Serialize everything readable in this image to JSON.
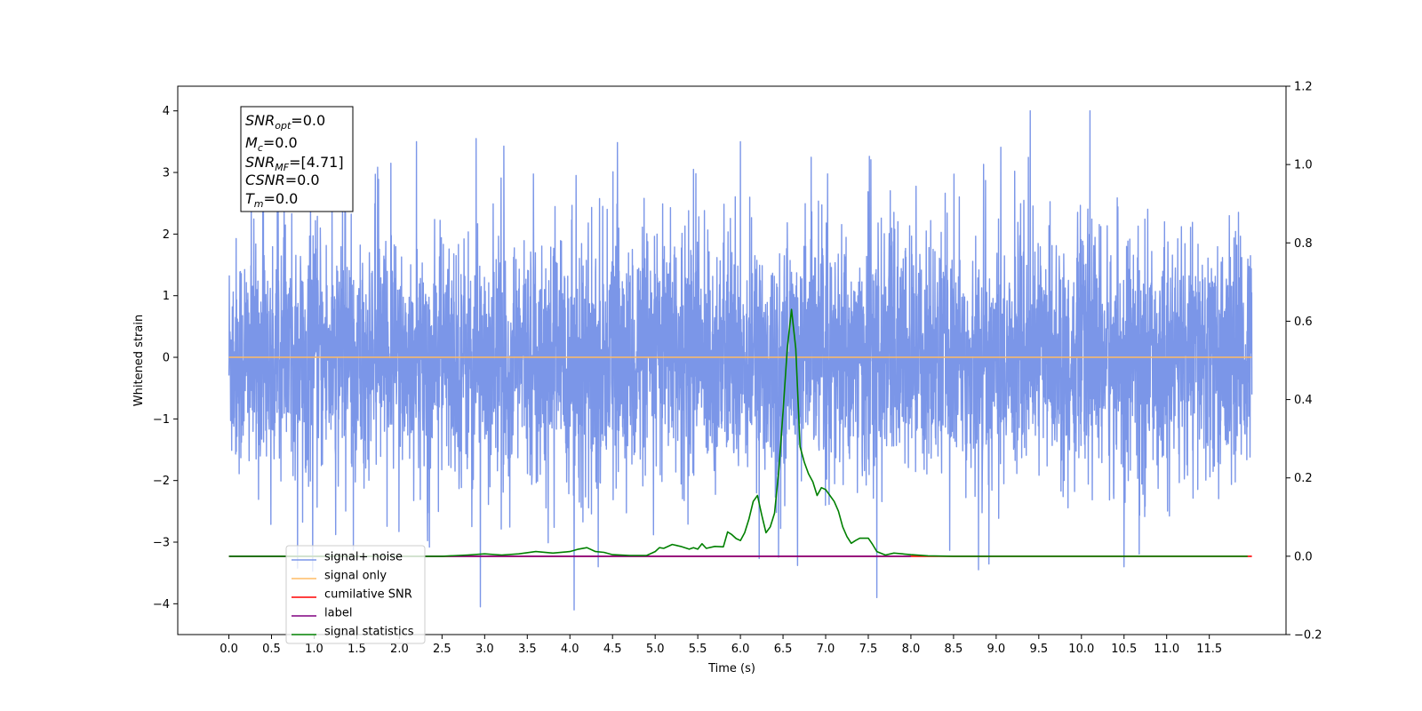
{
  "chart_data": {
    "type": "line",
    "xlabel": "Time (s)",
    "ylabel": "Whitened strain",
    "xlim": [
      -0.6,
      12.4
    ],
    "ylim": [
      -4.5,
      4.4
    ],
    "ylim_right": [
      -0.2,
      1.2
    ],
    "x_ticks": [
      "0.0",
      "0.5",
      "1.0",
      "1.5",
      "2.0",
      "2.5",
      "3.0",
      "3.5",
      "4.0",
      "4.5",
      "5.0",
      "5.5",
      "6.0",
      "6.5",
      "7.0",
      "7.5",
      "8.0",
      "8.5",
      "9.0",
      "9.5",
      "10.0",
      "10.5",
      "11.0",
      "11.5"
    ],
    "y_ticks_left": [
      "4",
      "3",
      "2",
      "1",
      "0",
      "−1",
      "−2",
      "−3",
      "−4"
    ],
    "y_ticks_right": [
      "1.2",
      "1.0",
      "0.8",
      "0.6",
      "0.4",
      "0.2",
      "0.0",
      "−0.2"
    ],
    "grid": false,
    "legend_position": "lower-left",
    "annotation": {
      "snr_opt": {
        "base": "SNR",
        "sub": "opt",
        "value": "=0.0"
      },
      "mc": {
        "base": "M",
        "sub": "c",
        "value": "=0.0"
      },
      "snr_mf": {
        "base": "SNR",
        "sub": "MF",
        "value": "=[4.71]"
      },
      "csnr": {
        "base": "CSNR",
        "value": "=0.0"
      },
      "tm": {
        "base": "T",
        "sub": "m",
        "value": "=0.0"
      }
    },
    "series": [
      {
        "name": "signal+ noise",
        "color": "#7b96e8",
        "axis": "left",
        "description_values": "noisy whitened strain spanning x 0.0 to 12.0, amplitude mostly within [-2.5, 2.5], peaks to about 4.0 and -4.1",
        "x_range": [
          0.0,
          12.0
        ],
        "sample_peaks": [
          {
            "x": 1.9,
            "y": 3.15
          },
          {
            "x": 2.2,
            "y": 3.5
          },
          {
            "x": 2.9,
            "y": 3.55
          },
          {
            "x": 2.95,
            "y": 3.7
          },
          {
            "x": 6.0,
            "y": 3.5
          },
          {
            "x": 9.4,
            "y": 4.0
          },
          {
            "x": 10.1,
            "y": 4.0
          },
          {
            "x": 2.95,
            "y": -4.05
          },
          {
            "x": 4.05,
            "y": -4.1
          },
          {
            "x": 7.6,
            "y": -3.9
          },
          {
            "x": 10.5,
            "y": -3.4
          }
        ]
      },
      {
        "name": "signal only",
        "color": "#ffbb66",
        "axis": "left",
        "x": [
          0.0,
          12.0
        ],
        "y": [
          0.0,
          0.0
        ]
      },
      {
        "name": "cumilative SNR",
        "color": "#ff0000",
        "axis": "right",
        "x": [
          0.0,
          12.0
        ],
        "y": [
          0.0,
          0.0
        ]
      },
      {
        "name": "label",
        "color": "#800080",
        "axis": "right",
        "x": [
          0.0,
          8.0
        ],
        "y": [
          0.0,
          0.0
        ]
      },
      {
        "name": "signal statistics",
        "color": "#008000",
        "axis": "right",
        "x": [
          0.0,
          1.0,
          2.0,
          2.5,
          2.8,
          3.0,
          3.2,
          3.4,
          3.6,
          3.8,
          4.0,
          4.1,
          4.2,
          4.3,
          4.4,
          4.5,
          4.7,
          4.9,
          5.0,
          5.05,
          5.1,
          5.2,
          5.3,
          5.4,
          5.45,
          5.5,
          5.55,
          5.6,
          5.7,
          5.8,
          5.85,
          5.9,
          5.95,
          6.0,
          6.05,
          6.1,
          6.15,
          6.2,
          6.25,
          6.3,
          6.35,
          6.4,
          6.45,
          6.5,
          6.55,
          6.6,
          6.65,
          6.7,
          6.75,
          6.8,
          6.85,
          6.9,
          6.95,
          7.0,
          7.05,
          7.1,
          7.15,
          7.2,
          7.25,
          7.3,
          7.35,
          7.4,
          7.5,
          7.55,
          7.6,
          7.7,
          7.8,
          8.0,
          8.2,
          8.5,
          9.0,
          10.0,
          11.0,
          11.95
        ],
        "y": [
          0.0,
          0.0,
          0.0,
          0.0,
          0.003,
          0.006,
          0.003,
          0.006,
          0.012,
          0.008,
          0.012,
          0.018,
          0.022,
          0.012,
          0.01,
          0.004,
          0.002,
          0.002,
          0.012,
          0.022,
          0.02,
          0.03,
          0.025,
          0.018,
          0.022,
          0.018,
          0.032,
          0.02,
          0.025,
          0.024,
          0.062,
          0.055,
          0.045,
          0.04,
          0.06,
          0.095,
          0.14,
          0.155,
          0.105,
          0.06,
          0.075,
          0.11,
          0.22,
          0.37,
          0.53,
          0.63,
          0.53,
          0.28,
          0.24,
          0.21,
          0.19,
          0.155,
          0.175,
          0.17,
          0.155,
          0.14,
          0.115,
          0.075,
          0.05,
          0.033,
          0.04,
          0.046,
          0.046,
          0.03,
          0.012,
          0.003,
          0.008,
          0.004,
          0.001,
          0.0,
          0.0,
          0.0,
          0.0,
          0.0
        ]
      }
    ]
  }
}
